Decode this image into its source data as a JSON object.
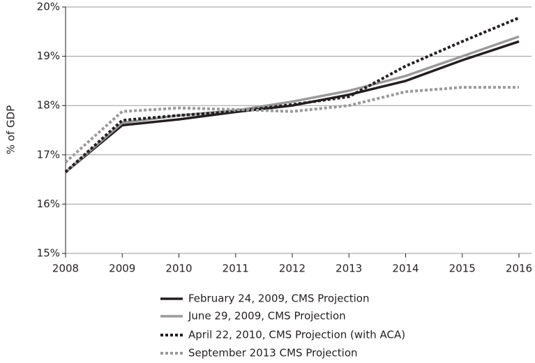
{
  "chart_data": {
    "type": "line",
    "y_label": "% of GDP",
    "x": [
      2008,
      2009,
      2010,
      2011,
      2012,
      2013,
      2014,
      2015,
      2016
    ],
    "xlim": [
      2008,
      2016
    ],
    "xticks": [
      2008,
      2009,
      2010,
      2011,
      2012,
      2013,
      2014,
      2015,
      2016
    ],
    "ylim": [
      15,
      20
    ],
    "yticks": [
      {
        "value": 15,
        "label": "15%"
      },
      {
        "value": 16,
        "label": "16%"
      },
      {
        "value": 17,
        "label": "17%"
      },
      {
        "value": 18,
        "label": "18%"
      },
      {
        "value": 19,
        "label": "19%"
      },
      {
        "value": 20,
        "label": "20%"
      }
    ],
    "grid": true,
    "legend": "bottom",
    "series": [
      {
        "name": "February 24, 2009, CMS Projection",
        "color": "#231f20",
        "dashed": false,
        "values": [
          16.65,
          17.6,
          17.72,
          17.87,
          18.0,
          18.22,
          18.5,
          18.92,
          19.3
        ]
      },
      {
        "name": "June 29, 2009, CMS Projection",
        "color": "#9a9a9a",
        "dashed": false,
        "values": [
          16.65,
          17.65,
          17.8,
          17.9,
          18.08,
          18.3,
          18.6,
          19.0,
          19.4
        ]
      },
      {
        "name": "April 22, 2010, CMS Projection (with ACA)",
        "color": "#231f20",
        "dashed": true,
        "values": [
          16.65,
          17.7,
          17.8,
          17.88,
          18.02,
          18.18,
          18.8,
          19.3,
          19.78
        ]
      },
      {
        "name": "September 2013 CMS Projection",
        "color": "#9a9a9a",
        "dashed": true,
        "values": [
          16.85,
          17.88,
          17.95,
          17.92,
          17.88,
          18.0,
          18.28,
          18.37,
          18.37
        ]
      }
    ]
  }
}
